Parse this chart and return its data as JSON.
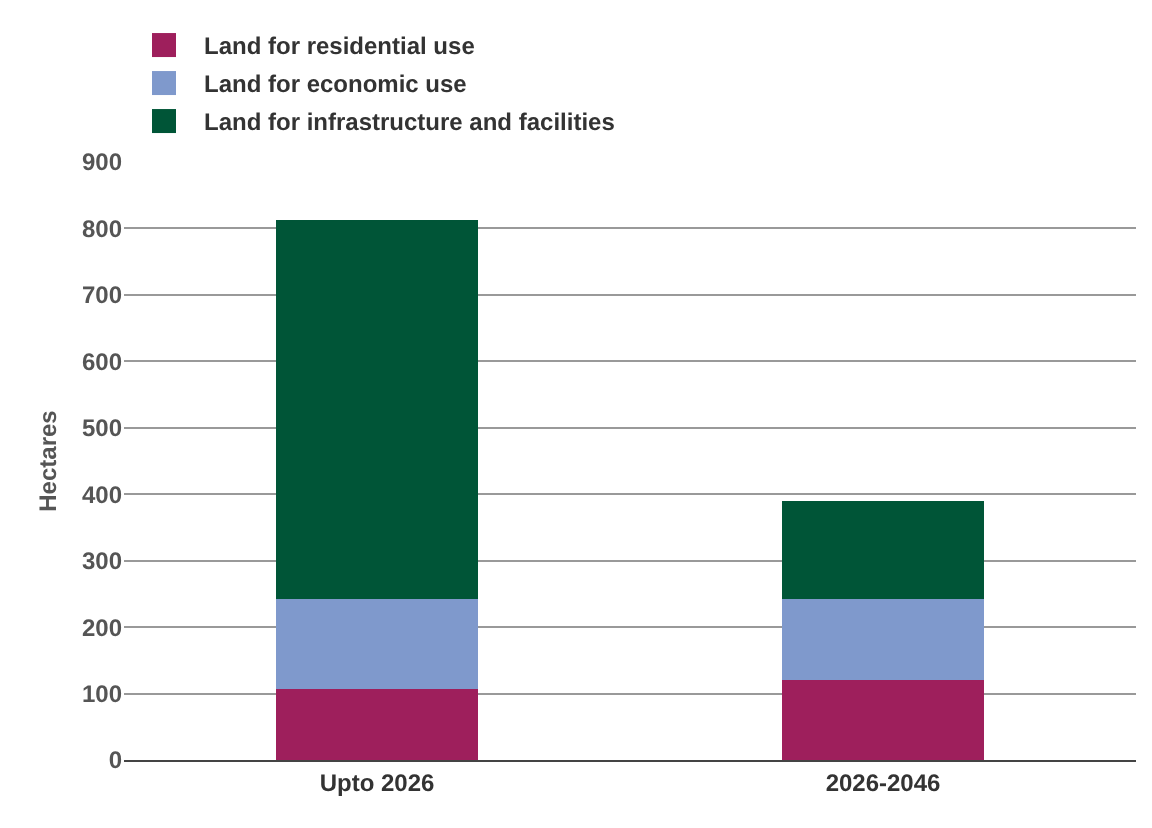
{
  "chart_data": {
    "type": "bar",
    "stacked": true,
    "ylabel": "Hectares",
    "categories": [
      "Upto 2026",
      "2026-2046"
    ],
    "series": [
      {
        "name": "Land for residential use",
        "color": "#9e1f5c",
        "values": [
          107,
          121
        ]
      },
      {
        "name": "Land for economic use",
        "color": "#7f99cc",
        "values": [
          135,
          121
        ]
      },
      {
        "name": "Land for infrastructure and facilities",
        "color": "#005537",
        "values": [
          571,
          148
        ]
      }
    ],
    "ylim": [
      0,
      900
    ],
    "yticks": [
      0,
      100,
      200,
      300,
      400,
      500,
      600,
      700,
      800,
      900
    ],
    "grid": "y",
    "legend": "top left"
  }
}
